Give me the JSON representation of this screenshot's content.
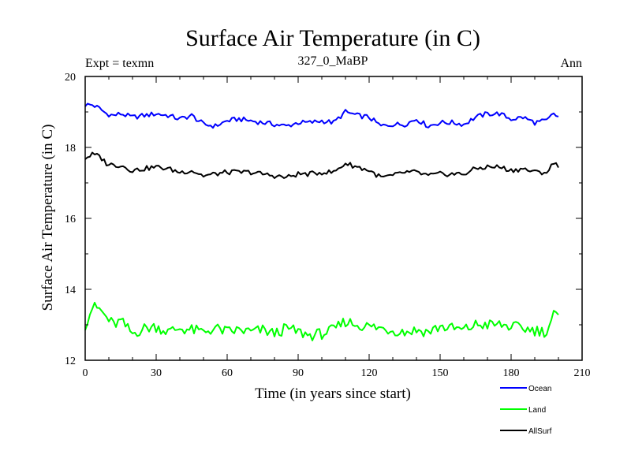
{
  "chart_data": {
    "type": "line",
    "title": "Surface Air Temperature (in C)",
    "subtitle_left": "Expt = texmn",
    "subtitle_center": "327_0_MaBP",
    "subtitle_right": "Ann",
    "xlabel": "Time (in years since start)",
    "ylabel": "Surface Air Temperature (in C)",
    "xlim": [
      0,
      210
    ],
    "ylim": [
      12,
      20
    ],
    "xticks": [
      0,
      30,
      60,
      90,
      120,
      150,
      180,
      210
    ],
    "yticks": [
      12,
      14,
      16,
      18,
      20
    ],
    "xtick_labels": [
      "0",
      "30",
      "60",
      "90",
      "120",
      "150",
      "180",
      "210"
    ],
    "ytick_labels": [
      "12",
      "14",
      "16",
      "18",
      "20"
    ],
    "series": [
      {
        "name": "Ocean",
        "color": "#0000ff",
        "keypoints": [
          [
            0,
            19.2
          ],
          [
            3,
            19.2
          ],
          [
            6,
            19.1
          ],
          [
            9,
            18.95
          ],
          [
            12,
            18.9
          ],
          [
            15,
            18.95
          ],
          [
            20,
            18.85
          ],
          [
            25,
            18.9
          ],
          [
            30,
            18.95
          ],
          [
            35,
            18.9
          ],
          [
            40,
            18.8
          ],
          [
            45,
            18.9
          ],
          [
            50,
            18.65
          ],
          [
            55,
            18.6
          ],
          [
            60,
            18.75
          ],
          [
            65,
            18.8
          ],
          [
            70,
            18.75
          ],
          [
            75,
            18.7
          ],
          [
            80,
            18.65
          ],
          [
            85,
            18.6
          ],
          [
            90,
            18.7
          ],
          [
            95,
            18.7
          ],
          [
            100,
            18.75
          ],
          [
            105,
            18.7
          ],
          [
            110,
            19.0
          ],
          [
            115,
            18.9
          ],
          [
            120,
            18.85
          ],
          [
            125,
            18.6
          ],
          [
            130,
            18.65
          ],
          [
            135,
            18.65
          ],
          [
            140,
            18.8
          ],
          [
            145,
            18.6
          ],
          [
            150,
            18.7
          ],
          [
            155,
            18.7
          ],
          [
            160,
            18.65
          ],
          [
            165,
            18.85
          ],
          [
            170,
            18.95
          ],
          [
            175,
            18.95
          ],
          [
            180,
            18.8
          ],
          [
            185,
            18.85
          ],
          [
            190,
            18.7
          ],
          [
            195,
            18.75
          ],
          [
            198,
            18.95
          ],
          [
            200,
            18.85
          ]
        ]
      },
      {
        "name": "Land",
        "color": "#00ff00",
        "keypoints": [
          [
            0,
            13.0
          ],
          [
            3,
            13.5
          ],
          [
            6,
            13.45
          ],
          [
            9,
            13.2
          ],
          [
            12,
            13.0
          ],
          [
            15,
            13.1
          ],
          [
            20,
            12.75
          ],
          [
            25,
            12.9
          ],
          [
            30,
            12.95
          ],
          [
            35,
            12.8
          ],
          [
            40,
            12.9
          ],
          [
            45,
            12.85
          ],
          [
            50,
            12.8
          ],
          [
            55,
            12.9
          ],
          [
            60,
            12.8
          ],
          [
            65,
            12.85
          ],
          [
            70,
            12.8
          ],
          [
            75,
            12.85
          ],
          [
            80,
            12.75
          ],
          [
            85,
            12.9
          ],
          [
            90,
            12.8
          ],
          [
            95,
            12.7
          ],
          [
            100,
            12.75
          ],
          [
            105,
            12.85
          ],
          [
            110,
            13.1
          ],
          [
            115,
            13.0
          ],
          [
            120,
            12.95
          ],
          [
            125,
            12.9
          ],
          [
            130,
            12.85
          ],
          [
            135,
            12.8
          ],
          [
            140,
            12.85
          ],
          [
            145,
            12.8
          ],
          [
            150,
            12.95
          ],
          [
            155,
            12.9
          ],
          [
            160,
            12.85
          ],
          [
            165,
            13.0
          ],
          [
            170,
            13.0
          ],
          [
            175,
            13.0
          ],
          [
            180,
            12.95
          ],
          [
            185,
            12.9
          ],
          [
            190,
            12.85
          ],
          [
            195,
            12.8
          ],
          [
            198,
            13.3
          ],
          [
            200,
            13.2
          ]
        ]
      },
      {
        "name": "AllSurf",
        "color": "#000000",
        "keypoints": [
          [
            0,
            17.7
          ],
          [
            3,
            17.8
          ],
          [
            6,
            17.75
          ],
          [
            9,
            17.55
          ],
          [
            12,
            17.5
          ],
          [
            15,
            17.5
          ],
          [
            20,
            17.35
          ],
          [
            25,
            17.4
          ],
          [
            30,
            17.45
          ],
          [
            35,
            17.4
          ],
          [
            40,
            17.3
          ],
          [
            45,
            17.35
          ],
          [
            50,
            17.2
          ],
          [
            55,
            17.25
          ],
          [
            60,
            17.3
          ],
          [
            65,
            17.3
          ],
          [
            70,
            17.3
          ],
          [
            75,
            17.25
          ],
          [
            80,
            17.2
          ],
          [
            85,
            17.15
          ],
          [
            90,
            17.25
          ],
          [
            95,
            17.25
          ],
          [
            100,
            17.3
          ],
          [
            105,
            17.3
          ],
          [
            110,
            17.55
          ],
          [
            115,
            17.45
          ],
          [
            120,
            17.35
          ],
          [
            125,
            17.15
          ],
          [
            130,
            17.2
          ],
          [
            135,
            17.3
          ],
          [
            140,
            17.3
          ],
          [
            145,
            17.2
          ],
          [
            150,
            17.25
          ],
          [
            155,
            17.25
          ],
          [
            160,
            17.25
          ],
          [
            165,
            17.4
          ],
          [
            170,
            17.45
          ],
          [
            175,
            17.45
          ],
          [
            180,
            17.35
          ],
          [
            185,
            17.4
          ],
          [
            190,
            17.3
          ],
          [
            195,
            17.3
          ],
          [
            198,
            17.55
          ],
          [
            200,
            17.5
          ]
        ]
      }
    ]
  }
}
